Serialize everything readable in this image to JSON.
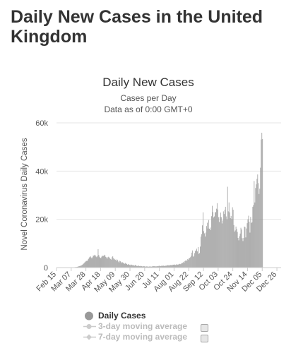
{
  "page": {
    "title": "Daily New Cases in the United Kingdom"
  },
  "chart_data": {
    "type": "bar",
    "title": "Daily New Cases",
    "subtitle": "Cases per Day",
    "subtitle2": "Data as of 0:00 GMT+0",
    "ylabel": "Novel Coronavirus Daily Cases",
    "xlabel": "",
    "ylim": [
      0,
      60000
    ],
    "y_ticks": [
      0,
      20000,
      40000,
      60000
    ],
    "y_tick_labels": [
      "0",
      "20k",
      "40k",
      "60k"
    ],
    "x_range": [
      "2020-02-15",
      "2021-01-01"
    ],
    "x_ticks": [
      "2020-02-15",
      "2020-03-07",
      "2020-03-28",
      "2020-04-18",
      "2020-05-09",
      "2020-05-30",
      "2020-06-20",
      "2020-07-11",
      "2020-08-01",
      "2020-08-22",
      "2020-09-12",
      "2020-10-03",
      "2020-10-24",
      "2020-11-14",
      "2020-12-05",
      "2020-12-26"
    ],
    "x_tick_labels": [
      "Feb 15",
      "Mar 07",
      "Mar 28",
      "Apr 18",
      "May 09",
      "May 30",
      "Jun 20",
      "Jul 11",
      "Aug 01",
      "Aug 22",
      "Sep 12",
      "Oct 03",
      "Oct 24",
      "Nov 14",
      "Dec 05",
      "Dec 26"
    ],
    "grid": true,
    "bar_color": "#999999",
    "series": [
      {
        "name": "Daily Cases",
        "start_date": "2020-02-15",
        "interval": "1 day",
        "values": [
          0,
          0,
          0,
          0,
          0,
          0,
          0,
          0,
          0,
          1,
          0,
          3,
          2,
          5,
          10,
          12,
          15,
          20,
          30,
          40,
          50,
          60,
          60,
          50,
          100,
          150,
          200,
          230,
          240,
          300,
          400,
          500,
          600,
          700,
          750,
          900,
          1100,
          1300,
          1600,
          1900,
          2200,
          2500,
          2800,
          2700,
          3000,
          3500,
          4000,
          4400,
          4700,
          4200,
          3800,
          4300,
          5000,
          4900,
          5300,
          5100,
          4600,
          4300,
          4800,
          7600,
          5200,
          4500,
          4100,
          3900,
          4500,
          5000,
          4700,
          4900,
          5300,
          5000,
          4400,
          4200,
          3700,
          4300,
          4500,
          4200,
          3800,
          3500,
          3300,
          4300,
          4700,
          3900,
          3300,
          3600,
          3200,
          2800,
          3400,
          3100,
          2500,
          2100,
          2800,
          2600,
          2300,
          1900,
          2200,
          2000,
          1700,
          1600,
          1900,
          1500,
          1600,
          1200,
          1400,
          1300,
          1100,
          1000,
          1300,
          1100,
          1000,
          900,
          1000,
          800,
          1100,
          900,
          700,
          650,
          800,
          750,
          600,
          550,
          700,
          620,
          500,
          450,
          600,
          550,
          450,
          400,
          500,
          480,
          400,
          380,
          450,
          500,
          420,
          380,
          450,
          650,
          580,
          550,
          600,
          480,
          500,
          530,
          640,
          560,
          800,
          650,
          580,
          700,
          760,
          680,
          850,
          700,
          650,
          800,
          750,
          850,
          1000,
          900,
          950,
          850,
          1100,
          1000,
          1050,
          950,
          1200,
          1150,
          1300,
          1100,
          1050,
          1400,
          1200,
          1250,
          1300,
          1500,
          1550,
          1400,
          1700,
          1900,
          2000,
          2400,
          2000,
          2700,
          2900,
          3000,
          2800,
          3500,
          3300,
          3900,
          4000,
          4300,
          4900,
          6200,
          7100,
          4500,
          4900,
          6000,
          6900,
          7100,
          7800,
          6700,
          8500,
          5700,
          6000,
          8700,
          12800,
          13900,
          17500,
          22900,
          15100,
          14200,
          12900,
          14500,
          17200,
          18600,
          16200,
          19700,
          16100,
          16600,
          15600,
          21300,
          25600,
          23000,
          20800,
          21200,
          22900,
          23000,
          24400,
          26700,
          24100,
          20900,
          18900,
          21000,
          22800,
          20900,
          18300,
          19500,
          23300,
          22200,
          24000,
          25200,
          21200,
          20000,
          33500,
          23300,
          27000,
          22900,
          20500,
          21400,
          20100,
          25000,
          24000,
          17600,
          14900,
          15400,
          17000,
          16000,
          14800,
          12300,
          11300,
          13000,
          14100,
          16500,
          15800,
          12200,
          11000,
          12300,
          17000,
          16800,
          12500,
          16200,
          18400,
          20000,
          21500,
          19000,
          14500,
          21000,
          18500,
          18800,
          25200,
          25900,
          35900,
          27000,
          33000,
          34500,
          36800,
          38600,
          35000,
          30500,
          32700,
          41400,
          53100,
          55900,
          53300
        ]
      }
    ],
    "legend": [
      {
        "name": "Daily Cases",
        "state": "active",
        "marker": "circle"
      },
      {
        "name": "3-day moving average",
        "state": "inactive",
        "marker": "line-circle"
      },
      {
        "name": "7-day moving average",
        "state": "inactive",
        "marker": "line-diamond"
      }
    ],
    "legend_placement": "bottom"
  }
}
